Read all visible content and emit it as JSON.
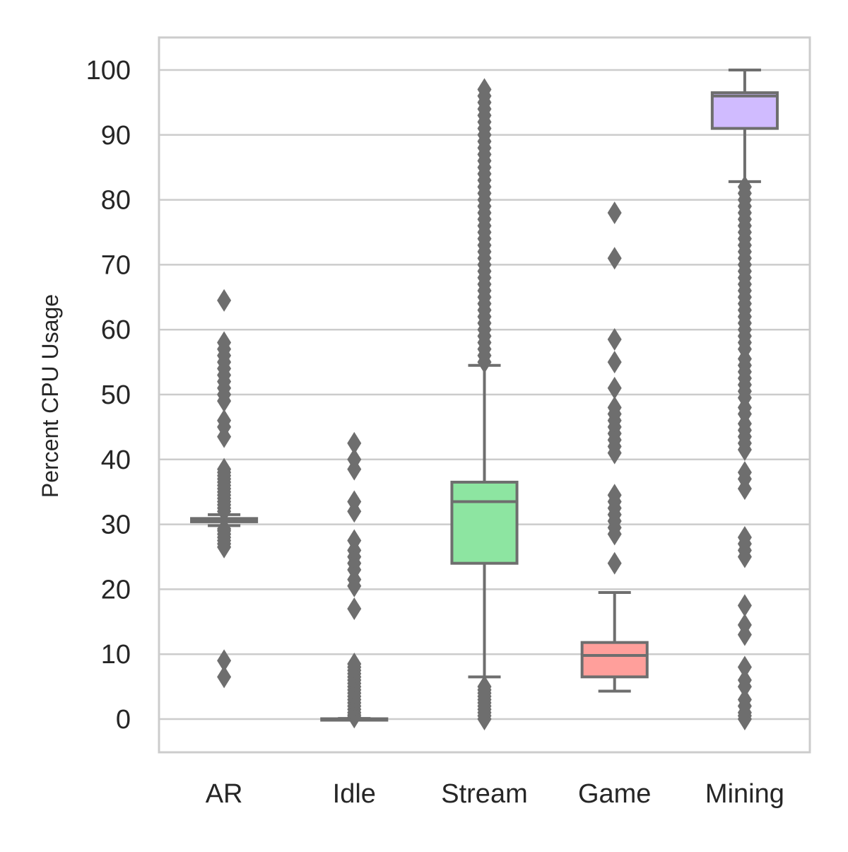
{
  "chart_data": {
    "type": "boxplot",
    "xlabel": "",
    "ylabel": "Percent CPU Usage",
    "ylim": [
      -5,
      105
    ],
    "yticks": [
      0,
      10,
      20,
      30,
      40,
      50,
      60,
      70,
      80,
      90,
      100
    ],
    "grid": "horizontal",
    "line_color": "#6e6e6e",
    "grid_color": "#cccccc",
    "categories": [
      "AR",
      "Idle",
      "Stream",
      "Game",
      "Mining"
    ],
    "boxes": [
      {
        "category": "AR",
        "color": "#a1c9f4",
        "whisker_low": 29.8,
        "q1": 30.4,
        "median": 30.7,
        "q3": 30.9,
        "whisker_high": 31.5,
        "outliers": [
          6.5,
          9,
          26.5,
          27,
          27.5,
          28,
          28.5,
          29,
          29.3,
          32,
          32.5,
          33,
          33.5,
          34,
          34.5,
          35,
          35.5,
          36,
          36.5,
          37,
          37.5,
          38,
          38.5,
          43.5,
          45,
          46,
          49,
          50,
          51,
          52,
          53,
          54,
          55,
          56,
          57,
          58,
          64.5
        ]
      },
      {
        "category": "Idle",
        "color": "#ffb482",
        "whisker_low": 0,
        "q1": 0,
        "median": 0,
        "q3": 0.05,
        "whisker_high": 0.1,
        "outliers": [
          0.3,
          0.6,
          1,
          1.5,
          2,
          2.5,
          3,
          3.5,
          4,
          4.5,
          5,
          5.5,
          6,
          6.5,
          7,
          7.5,
          8,
          8.5,
          17,
          20.5,
          21.5,
          23,
          24,
          25,
          26,
          27.5,
          32,
          33.5,
          38.5,
          40,
          42.5
        ]
      },
      {
        "category": "Stream",
        "color": "#8de5a1",
        "whisker_low": 6.5,
        "q1": 24,
        "median": 33.5,
        "q3": 36.5,
        "whisker_high": 54.5,
        "outliers": [
          0,
          0.5,
          1,
          1.5,
          2,
          2.5,
          3,
          3.5,
          4,
          4.5,
          5,
          55,
          56,
          57,
          58,
          59,
          60,
          61,
          62,
          63,
          64,
          65,
          66,
          67,
          68,
          69,
          70,
          71,
          72,
          73,
          74,
          75,
          76,
          77,
          78,
          79,
          80,
          81,
          82,
          83,
          84,
          85,
          86,
          87,
          88,
          89,
          90,
          91,
          92,
          93,
          94,
          95,
          96,
          97
        ]
      },
      {
        "category": "Game",
        "color": "#ff9f9b",
        "whisker_low": 4.3,
        "q1": 6.5,
        "median": 9.8,
        "q3": 11.8,
        "whisker_high": 19.5,
        "outliers": [
          24,
          28.5,
          29.5,
          30.5,
          31.5,
          32.5,
          33.5,
          34.5,
          41,
          42,
          43,
          44,
          45,
          46,
          47,
          48,
          51,
          55,
          58.5,
          71,
          78
        ]
      },
      {
        "category": "Mining",
        "color": "#d0bbff",
        "whisker_low": 82.8,
        "q1": 91,
        "median": 96,
        "q3": 96.5,
        "whisker_high": 100,
        "outliers": [
          0,
          0.5,
          1,
          2,
          3,
          5,
          6,
          8,
          13,
          14.5,
          17.5,
          25,
          26,
          27,
          28,
          35.5,
          37,
          38,
          41.5,
          42.5,
          43.5,
          44.5,
          45.5,
          47,
          48,
          49.5,
          50.5,
          51.5,
          52.5,
          53.5,
          54.5,
          55.5,
          57,
          58,
          59,
          60,
          61,
          62,
          63,
          64,
          65,
          66,
          67,
          68,
          69,
          70,
          71,
          72,
          73,
          74,
          75,
          76,
          77,
          78,
          79,
          80,
          81,
          82
        ]
      }
    ]
  }
}
